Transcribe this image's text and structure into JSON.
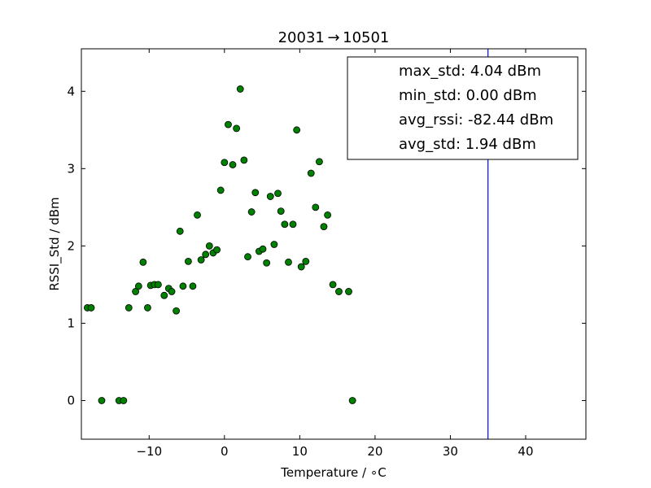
{
  "chart_data": {
    "type": "scatter",
    "title": "20031 → 10501",
    "xlabel": "Temperature / ∘C",
    "ylabel": "RSSI_Std / dBm",
    "xlim": [
      -19,
      48
    ],
    "ylim": [
      -0.5,
      4.55
    ],
    "xticks": [
      -10,
      0,
      10,
      20,
      30,
      40
    ],
    "xtick_labels": [
      "−10",
      "0",
      "10",
      "20",
      "30",
      "40"
    ],
    "yticks": [
      0,
      1,
      2,
      3,
      4
    ],
    "ytick_labels": [
      "0",
      "1",
      "2",
      "3",
      "4"
    ],
    "grid": false,
    "marker_color": "#008000",
    "vline": {
      "x": 35,
      "color": "#0000ff"
    },
    "legend_position": "top-right",
    "legend": [
      "max_std: 4.04 dBm",
      "min_std: 0.00 dBm",
      "avg_rssi: -82.44 dBm",
      "avg_std: 1.94 dBm"
    ],
    "series": [
      {
        "points": [
          [
            -18.2,
            1.2
          ],
          [
            -17.7,
            1.2
          ],
          [
            -16.3,
            0.0
          ],
          [
            -14.0,
            0.0
          ],
          [
            -13.4,
            0.0
          ],
          [
            -12.7,
            1.2
          ],
          [
            -11.8,
            1.41
          ],
          [
            -11.4,
            1.48
          ],
          [
            -10.8,
            1.79
          ],
          [
            -10.2,
            1.2
          ],
          [
            -9.8,
            1.49
          ],
          [
            -9.3,
            1.5
          ],
          [
            -8.8,
            1.5
          ],
          [
            -8.0,
            1.36
          ],
          [
            -7.4,
            1.45
          ],
          [
            -7.0,
            1.41
          ],
          [
            -6.4,
            1.16
          ],
          [
            -5.9,
            2.19
          ],
          [
            -5.5,
            1.48
          ],
          [
            -4.8,
            1.8
          ],
          [
            -4.2,
            1.48
          ],
          [
            -3.6,
            2.4
          ],
          [
            -3.1,
            1.82
          ],
          [
            -2.5,
            1.89
          ],
          [
            -2.0,
            2.0
          ],
          [
            -1.5,
            1.91
          ],
          [
            -1.0,
            1.95
          ],
          [
            -0.5,
            2.72
          ],
          [
            0.0,
            3.08
          ],
          [
            0.5,
            3.57
          ],
          [
            1.1,
            3.05
          ],
          [
            1.6,
            3.52
          ],
          [
            2.1,
            4.03
          ],
          [
            2.6,
            3.11
          ],
          [
            3.1,
            1.86
          ],
          [
            3.6,
            2.44
          ],
          [
            4.1,
            2.69
          ],
          [
            4.6,
            1.93
          ],
          [
            5.1,
            1.96
          ],
          [
            5.6,
            1.78
          ],
          [
            6.1,
            2.64
          ],
          [
            6.6,
            2.02
          ],
          [
            7.1,
            2.68
          ],
          [
            7.5,
            2.45
          ],
          [
            8.0,
            2.28
          ],
          [
            8.5,
            1.79
          ],
          [
            9.1,
            2.28
          ],
          [
            9.6,
            3.5
          ],
          [
            10.2,
            1.73
          ],
          [
            10.8,
            1.8
          ],
          [
            11.5,
            2.94
          ],
          [
            12.1,
            2.5
          ],
          [
            12.6,
            3.09
          ],
          [
            13.2,
            2.25
          ],
          [
            13.7,
            2.4
          ],
          [
            14.4,
            1.5
          ],
          [
            15.2,
            1.41
          ],
          [
            16.5,
            1.41
          ],
          [
            17.0,
            0.0
          ]
        ]
      }
    ]
  }
}
